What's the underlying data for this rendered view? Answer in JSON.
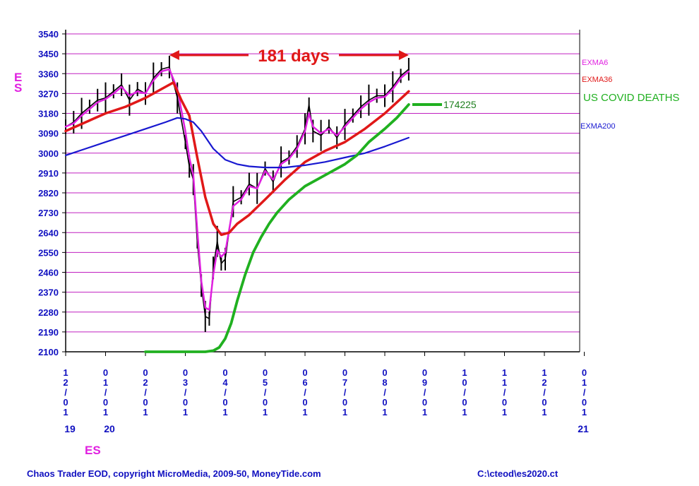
{
  "chart_data": {
    "type": "line",
    "ticker": "ES",
    "y_ticks": [
      3540,
      3450,
      3360,
      3270,
      3180,
      3090,
      3000,
      2910,
      2820,
      2730,
      2640,
      2550,
      2460,
      2370,
      2280,
      2190,
      2100
    ],
    "ylim": [
      2100,
      3540
    ],
    "x_tick_labels": [
      "12/01",
      "01/01",
      "02/01",
      "03/01",
      "04/01",
      "05/01",
      "06/01",
      "07/01",
      "08/01",
      "09/01",
      "10/01",
      "11/01",
      "12/01",
      "01/01"
    ],
    "year_labels": [
      "19",
      "20",
      "21"
    ],
    "grid": "horizontal magenta lines",
    "annotation": {
      "text": "181 days",
      "from": "02/19",
      "to": "08/18"
    },
    "legend": [
      {
        "name": "EXMA6",
        "color": "#e020e0"
      },
      {
        "name": "EXMA36",
        "color": "#e01818"
      },
      {
        "name": "US COVID DEATHS",
        "color": "#20b020"
      },
      {
        "name": "EXMA200",
        "color": "#1818d0"
      }
    ],
    "covid_deaths_last_value": "174225",
    "x_months_index": "0 = Dec 1 2019, 1 = Jan 1 2020, ...",
    "series": [
      {
        "name": "ES price",
        "color": "#000000",
        "x": [
          0,
          0.2,
          0.4,
          0.6,
          0.8,
          1.0,
          1.2,
          1.4,
          1.6,
          1.8,
          2.0,
          2.2,
          2.4,
          2.6,
          2.8,
          3.0,
          3.1,
          3.2,
          3.3,
          3.4,
          3.5,
          3.6,
          3.7,
          3.8,
          3.9,
          4.0,
          4.2,
          4.4,
          4.6,
          4.8,
          5.0,
          5.2,
          5.4,
          5.6,
          5.8,
          6.0,
          6.1,
          6.2,
          6.4,
          6.6,
          6.8,
          7.0,
          7.2,
          7.4,
          7.6,
          7.8,
          8.0,
          8.2,
          8.4,
          8.6
        ],
        "values": [
          3120,
          3140,
          3180,
          3210,
          3240,
          3250,
          3280,
          3310,
          3240,
          3290,
          3270,
          3340,
          3380,
          3390,
          3250,
          3050,
          2940,
          2880,
          2600,
          2400,
          2260,
          2250,
          2480,
          2600,
          2500,
          2520,
          2780,
          2800,
          2860,
          2840,
          2930,
          2870,
          2960,
          2980,
          3030,
          3110,
          3220,
          3100,
          3080,
          3120,
          3070,
          3130,
          3170,
          3210,
          3240,
          3260,
          3260,
          3300,
          3350,
          3380
        ]
      },
      {
        "name": "EXMA6",
        "color": "#e020e0",
        "x": [
          0,
          0.2,
          0.4,
          0.6,
          0.8,
          1.0,
          1.2,
          1.4,
          1.6,
          1.8,
          2.0,
          2.2,
          2.4,
          2.6,
          2.8,
          3.0,
          3.1,
          3.2,
          3.3,
          3.4,
          3.5,
          3.6,
          3.7,
          3.8,
          3.9,
          4.0,
          4.2,
          4.4,
          4.6,
          4.8,
          5.0,
          5.2,
          5.4,
          5.6,
          5.8,
          6.0,
          6.1,
          6.2,
          6.4,
          6.6,
          6.8,
          7.0,
          7.2,
          7.4,
          7.6,
          7.8,
          8.0,
          8.2,
          8.4,
          8.6
        ],
        "values": [
          3120,
          3135,
          3170,
          3200,
          3230,
          3245,
          3270,
          3300,
          3260,
          3280,
          3270,
          3330,
          3370,
          3380,
          3290,
          3100,
          2980,
          2900,
          2650,
          2420,
          2300,
          2290,
          2450,
          2560,
          2530,
          2550,
          2760,
          2790,
          2850,
          2840,
          2920,
          2880,
          2950,
          2975,
          3020,
          3100,
          3180,
          3120,
          3090,
          3110,
          3080,
          3120,
          3160,
          3200,
          3230,
          3250,
          3255,
          3290,
          3340,
          3370
        ]
      },
      {
        "name": "EXMA36",
        "color": "#e01818",
        "x": [
          0,
          0.5,
          1.0,
          1.5,
          2.0,
          2.5,
          2.7,
          2.9,
          3.1,
          3.3,
          3.5,
          3.7,
          3.9,
          4.1,
          4.3,
          4.6,
          5.0,
          5.5,
          6.0,
          6.5,
          7.0,
          7.5,
          8.0,
          8.3,
          8.6
        ],
        "values": [
          3100,
          3140,
          3180,
          3210,
          3250,
          3300,
          3320,
          3240,
          3170,
          2980,
          2800,
          2680,
          2630,
          2640,
          2680,
          2720,
          2790,
          2880,
          2960,
          3010,
          3050,
          3110,
          3180,
          3230,
          3280
        ]
      },
      {
        "name": "EXMA200",
        "color": "#1818d0",
        "x": [
          0,
          0.5,
          1.0,
          1.5,
          2.0,
          2.5,
          2.8,
          3.0,
          3.2,
          3.4,
          3.7,
          4.0,
          4.3,
          4.6,
          5.0,
          5.5,
          6.0,
          6.5,
          7.0,
          7.5,
          8.0,
          8.3,
          8.6
        ],
        "values": [
          2990,
          3020,
          3050,
          3080,
          3110,
          3140,
          3160,
          3155,
          3140,
          3100,
          3020,
          2970,
          2950,
          2940,
          2935,
          2935,
          2945,
          2960,
          2980,
          3000,
          3030,
          3050,
          3070
        ]
      },
      {
        "name": "US COVID DEATHS",
        "color": "#20b020",
        "x": [
          2.0,
          2.5,
          3.0,
          3.5,
          3.7,
          3.85,
          4.0,
          4.15,
          4.3,
          4.5,
          4.7,
          4.9,
          5.1,
          5.3,
          5.6,
          6.0,
          6.5,
          7.0,
          7.3,
          7.6,
          8.0,
          8.3,
          8.6
        ],
        "values": [
          2100,
          2100,
          2100,
          2100,
          2105,
          2120,
          2160,
          2230,
          2330,
          2450,
          2550,
          2620,
          2680,
          2730,
          2790,
          2850,
          2900,
          2950,
          2990,
          3050,
          3110,
          3160,
          3220
        ]
      }
    ]
  }
}
